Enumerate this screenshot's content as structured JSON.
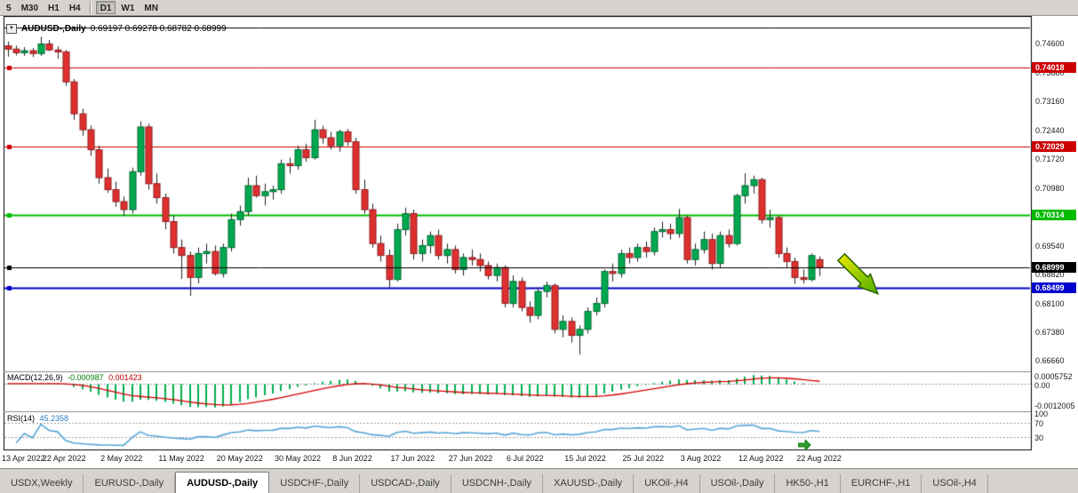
{
  "toolbar": {
    "timeframe_groups": [
      [
        "5",
        "M30",
        "H1",
        "H4"
      ],
      [
        "D1",
        "W1",
        "MN"
      ]
    ],
    "active": "D1"
  },
  "icons": {
    "dropdown": "▼"
  },
  "chart_data": {
    "type": "candlestick",
    "title": "AUDUSD-,Daily",
    "ohlc_text": "0.69197 0.69278 0.68782 0.68999",
    "bull_color": "#00A94F",
    "bear_color": "#DF3030",
    "bull_border": "#006B33",
    "bear_border": "#8F1D1D",
    "wick_color": "#222222",
    "y_range": [
      0.664,
      0.753
    ],
    "slots": 124,
    "x_label_step": 7,
    "y_axis_labels": [
      "0.74600",
      "0.73880",
      "0.73160",
      "0.72440",
      "0.71720",
      "0.70980",
      "0.70260",
      "0.69540",
      "0.68820",
      "0.68100",
      "0.67380",
      "0.66660"
    ],
    "x_labels": [
      "13 Apr 2022",
      "22 Apr 2022",
      "2 May 2022",
      "11 May 2022",
      "20 May 2022",
      "30 May 2022",
      "8 Jun 2022",
      "17 Jun 2022",
      "27 Jun 2022",
      "6 Jul 2022",
      "15 Jul 2022",
      "25 Jul 2022",
      "3 Aug 2022",
      "12 Aug 2022",
      "22 Aug 2022"
    ],
    "levels": [
      {
        "price": 0.75,
        "color": "#000000",
        "width": 1,
        "label": ""
      },
      {
        "price": 0.74018,
        "color": "#CC0000",
        "width": 1,
        "label": "0.74018"
      },
      {
        "price": 0.72029,
        "color": "#CC0000",
        "width": 1,
        "label": "0.72029"
      },
      {
        "price": 0.70314,
        "color": "#00BB00",
        "width": 2,
        "label": "0.70314"
      },
      {
        "price": 0.68499,
        "color": "#0000CC",
        "width": 2,
        "label": "0.68499"
      },
      {
        "price": 0.68999,
        "color": "#000000",
        "width": 1,
        "label": "0.68999",
        "above": true
      }
    ],
    "candles": [
      [
        0.7455,
        0.7466,
        0.7428,
        0.7447
      ],
      [
        0.7447,
        0.7456,
        0.7431,
        0.7438
      ],
      [
        0.7438,
        0.7452,
        0.743,
        0.7443
      ],
      [
        0.7443,
        0.745,
        0.7427,
        0.7436
      ],
      [
        0.7436,
        0.7478,
        0.743,
        0.746
      ],
      [
        0.746,
        0.747,
        0.7442,
        0.7445
      ],
      [
        0.7445,
        0.7454,
        0.7423,
        0.744
      ],
      [
        0.744,
        0.7445,
        0.7355,
        0.7365
      ],
      [
        0.7365,
        0.7372,
        0.727,
        0.7285
      ],
      [
        0.7285,
        0.7298,
        0.723,
        0.7245
      ],
      [
        0.7245,
        0.7256,
        0.718,
        0.7195
      ],
      [
        0.7195,
        0.7205,
        0.711,
        0.7125
      ],
      [
        0.7125,
        0.7148,
        0.7087,
        0.7095
      ],
      [
        0.7095,
        0.7115,
        0.7052,
        0.7065
      ],
      [
        0.7065,
        0.7078,
        0.703,
        0.7045
      ],
      [
        0.7045,
        0.715,
        0.7035,
        0.714
      ],
      [
        0.714,
        0.7266,
        0.713,
        0.7252
      ],
      [
        0.7252,
        0.726,
        0.7095,
        0.711
      ],
      [
        0.711,
        0.7135,
        0.706,
        0.7075
      ],
      [
        0.7075,
        0.7085,
        0.6996,
        0.7015
      ],
      [
        0.7015,
        0.703,
        0.6935,
        0.695
      ],
      [
        0.695,
        0.697,
        0.6871,
        0.693
      ],
      [
        0.693,
        0.694,
        0.6829,
        0.6875
      ],
      [
        0.6875,
        0.695,
        0.686,
        0.6935
      ],
      [
        0.6935,
        0.696,
        0.691,
        0.694
      ],
      [
        0.694,
        0.6955,
        0.688,
        0.6885
      ],
      [
        0.6885,
        0.696,
        0.6875,
        0.695
      ],
      [
        0.695,
        0.7035,
        0.694,
        0.702
      ],
      [
        0.702,
        0.7055,
        0.7005,
        0.704
      ],
      [
        0.704,
        0.7125,
        0.703,
        0.7105
      ],
      [
        0.7105,
        0.713,
        0.7075,
        0.708
      ],
      [
        0.708,
        0.711,
        0.7055,
        0.709
      ],
      [
        0.709,
        0.7105,
        0.707,
        0.7095
      ],
      [
        0.7095,
        0.717,
        0.7085,
        0.716
      ],
      [
        0.716,
        0.7175,
        0.7135,
        0.7155
      ],
      [
        0.7155,
        0.7205,
        0.7145,
        0.7195
      ],
      [
        0.7195,
        0.721,
        0.7165,
        0.7175
      ],
      [
        0.7175,
        0.727,
        0.717,
        0.7245
      ],
      [
        0.7245,
        0.7255,
        0.721,
        0.7225
      ],
      [
        0.7225,
        0.724,
        0.7195,
        0.7205
      ],
      [
        0.7205,
        0.7245,
        0.719,
        0.724
      ],
      [
        0.724,
        0.7247,
        0.7205,
        0.7215
      ],
      [
        0.7215,
        0.7225,
        0.7085,
        0.7095
      ],
      [
        0.7095,
        0.712,
        0.7035,
        0.7045
      ],
      [
        0.7045,
        0.706,
        0.695,
        0.696
      ],
      [
        0.696,
        0.698,
        0.6915,
        0.693
      ],
      [
        0.693,
        0.6945,
        0.685,
        0.687
      ],
      [
        0.687,
        0.701,
        0.6865,
        0.6995
      ],
      [
        0.6995,
        0.705,
        0.698,
        0.7035
      ],
      [
        0.7035,
        0.7045,
        0.692,
        0.6935
      ],
      [
        0.6935,
        0.697,
        0.6915,
        0.6955
      ],
      [
        0.6955,
        0.699,
        0.6935,
        0.698
      ],
      [
        0.698,
        0.6995,
        0.692,
        0.693
      ],
      [
        0.693,
        0.696,
        0.691,
        0.6945
      ],
      [
        0.6945,
        0.6955,
        0.6885,
        0.6895
      ],
      [
        0.6895,
        0.6935,
        0.688,
        0.6925
      ],
      [
        0.6925,
        0.6945,
        0.6905,
        0.692
      ],
      [
        0.692,
        0.6935,
        0.689,
        0.6905
      ],
      [
        0.6905,
        0.6915,
        0.687,
        0.688
      ],
      [
        0.688,
        0.691,
        0.6865,
        0.69
      ],
      [
        0.69,
        0.6905,
        0.68,
        0.681
      ],
      [
        0.681,
        0.688,
        0.68,
        0.6865
      ],
      [
        0.6865,
        0.6875,
        0.679,
        0.68
      ],
      [
        0.68,
        0.6815,
        0.6762,
        0.678
      ],
      [
        0.678,
        0.685,
        0.677,
        0.684
      ],
      [
        0.684,
        0.6865,
        0.6825,
        0.6855
      ],
      [
        0.6855,
        0.686,
        0.6735,
        0.6745
      ],
      [
        0.6745,
        0.678,
        0.6725,
        0.6765
      ],
      [
        0.6765,
        0.6775,
        0.6712,
        0.673
      ],
      [
        0.673,
        0.6755,
        0.6682,
        0.6745
      ],
      [
        0.6745,
        0.68,
        0.6735,
        0.679
      ],
      [
        0.679,
        0.6825,
        0.678,
        0.681
      ],
      [
        0.681,
        0.6895,
        0.68,
        0.689
      ],
      [
        0.689,
        0.691,
        0.6865,
        0.6885
      ],
      [
        0.6885,
        0.6945,
        0.6875,
        0.6935
      ],
      [
        0.6935,
        0.695,
        0.691,
        0.6925
      ],
      [
        0.6925,
        0.696,
        0.6915,
        0.695
      ],
      [
        0.695,
        0.6965,
        0.6925,
        0.694
      ],
      [
        0.694,
        0.7,
        0.693,
        0.699
      ],
      [
        0.699,
        0.7015,
        0.6975,
        0.6995
      ],
      [
        0.6995,
        0.701,
        0.697,
        0.6985
      ],
      [
        0.6985,
        0.7047,
        0.6975,
        0.7025
      ],
      [
        0.7025,
        0.703,
        0.691,
        0.692
      ],
      [
        0.692,
        0.696,
        0.6905,
        0.6945
      ],
      [
        0.6945,
        0.699,
        0.6935,
        0.697
      ],
      [
        0.697,
        0.6985,
        0.6895,
        0.691
      ],
      [
        0.691,
        0.699,
        0.69,
        0.698
      ],
      [
        0.698,
        0.6995,
        0.695,
        0.696
      ],
      [
        0.696,
        0.7085,
        0.6955,
        0.708
      ],
      [
        0.708,
        0.7136,
        0.706,
        0.7105
      ],
      [
        0.7105,
        0.713,
        0.7085,
        0.712
      ],
      [
        0.712,
        0.7125,
        0.701,
        0.702
      ],
      [
        0.702,
        0.7045,
        0.7,
        0.7025
      ],
      [
        0.7025,
        0.703,
        0.6925,
        0.6935
      ],
      [
        0.6935,
        0.695,
        0.69,
        0.6915
      ],
      [
        0.6915,
        0.6925,
        0.68595,
        0.6875
      ],
      [
        0.6875,
        0.6895,
        0.686,
        0.687
      ],
      [
        0.687,
        0.6935,
        0.6865,
        0.693
      ],
      [
        0.69197,
        0.69278,
        0.68782,
        0.68999
      ]
    ],
    "indicators": {
      "macd": {
        "label": "MACD(12,26,9)",
        "value_main": "-0.000987",
        "value_signal": "0.001423",
        "fast": 12,
        "slow": 26,
        "signal": 9,
        "histogram_color": "#00B050",
        "signal_color": "#D40000",
        "axis_labels": [
          "0.0005752",
          "0.00",
          "-0.0012005"
        ]
      },
      "rsi": {
        "label": "RSI(14)",
        "value_text": "45.2358",
        "period": 14,
        "line_color": "#58A6D8",
        "levels": [
          70,
          30
        ],
        "axis_labels": [
          "100",
          "70",
          "30"
        ]
      }
    }
  },
  "annotations": {
    "sell_arrow": {
      "fill_top": "#EDE900",
      "fill_bottom": "#4FAE00",
      "stroke": "#2F6B00"
    },
    "mini_arrow": {
      "color": "#2CA02C",
      "stroke": "#1C7A1C"
    }
  },
  "tabs": {
    "active": "AUDUSD-,Daily",
    "items": [
      "USDX,Weekly",
      "EURUSD-,Daily",
      "AUDUSD-,Daily",
      "USDCHF-,Daily",
      "USDCAD-,Daily",
      "USDCNH-,Daily",
      "XAUUSD-,Daily",
      "UKOil-,H4",
      "USOil-,Daily",
      "HK50-,H1",
      "EURCHF-,H1",
      "USOil-,H4"
    ]
  }
}
